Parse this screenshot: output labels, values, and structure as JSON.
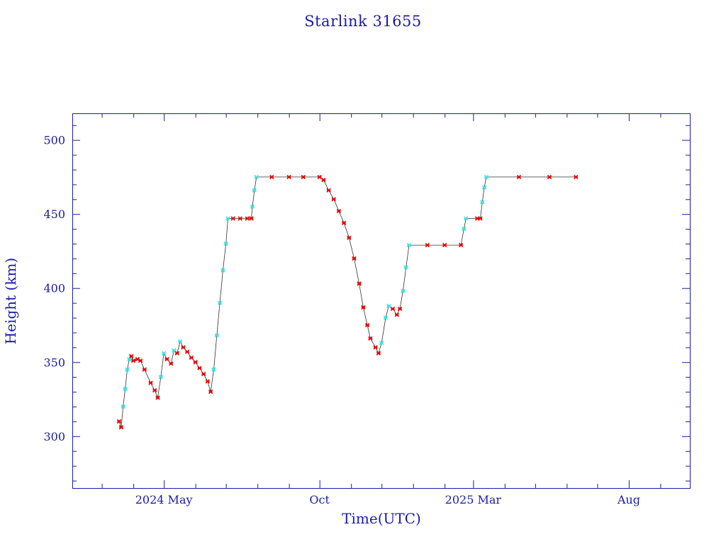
{
  "chart_data": {
    "type": "scatter",
    "title": "Starlink 31655",
    "xlabel": "Time(UTC)",
    "ylabel": "Height (km)",
    "x_unit": "date",
    "xlim": [
      "2024-02-01",
      "2025-09-30"
    ],
    "ylim": [
      265,
      518
    ],
    "y_ticks": [
      300,
      350,
      400,
      450,
      500
    ],
    "x_ticks": [
      {
        "date": "2024-05-01",
        "label": "2024 May"
      },
      {
        "date": "2024-10-01",
        "label": "Oct"
      },
      {
        "date": "2025-03-01",
        "label": "2025 Mar"
      },
      {
        "date": "2025-08-01",
        "label": "Aug"
      }
    ],
    "grid": false,
    "colors": {
      "frame": "#1a1aa6",
      "marker_red": "#e80000",
      "marker_cyan": "#3ee6e6",
      "line": "#333333"
    },
    "series": [
      {
        "points": [
          [
            "2024-03-18",
            310
          ],
          [
            "2024-03-20",
            306
          ],
          [
            "2024-03-22",
            320
          ],
          [
            "2024-03-24",
            332
          ],
          [
            "2024-03-26",
            345
          ],
          [
            "2024-03-28",
            352
          ],
          [
            "2024-03-30",
            354
          ],
          [
            "2024-04-01",
            351
          ],
          [
            "2024-04-05",
            352
          ],
          [
            "2024-04-08",
            351
          ],
          [
            "2024-04-12",
            345
          ],
          [
            "2024-04-18",
            336
          ],
          [
            "2024-04-22",
            331
          ],
          [
            "2024-04-25",
            326
          ],
          [
            "2024-04-28",
            340
          ],
          [
            "2024-05-01",
            356
          ],
          [
            "2024-05-04",
            352
          ],
          [
            "2024-05-08",
            349
          ],
          [
            "2024-05-11",
            358
          ],
          [
            "2024-05-14",
            356
          ],
          [
            "2024-05-17",
            364
          ],
          [
            "2024-05-20",
            360
          ],
          [
            "2024-05-24",
            357
          ],
          [
            "2024-05-28",
            353
          ],
          [
            "2024-06-01",
            350
          ],
          [
            "2024-06-05",
            346
          ],
          [
            "2024-06-09",
            342
          ],
          [
            "2024-06-13",
            337
          ],
          [
            "2024-06-16",
            330
          ],
          [
            "2024-06-19",
            345
          ],
          [
            "2024-06-22",
            368
          ],
          [
            "2024-06-25",
            390
          ],
          [
            "2024-06-28",
            412
          ],
          [
            "2024-07-01",
            430
          ],
          [
            "2024-07-03",
            447
          ],
          [
            "2024-07-08",
            447
          ],
          [
            "2024-07-15",
            447
          ],
          [
            "2024-07-22",
            447
          ],
          [
            "2024-07-26",
            447
          ],
          [
            "2024-07-27",
            455
          ],
          [
            "2024-07-29",
            466
          ],
          [
            "2024-07-31",
            475
          ],
          [
            "2024-08-15",
            475
          ],
          [
            "2024-09-01",
            475
          ],
          [
            "2024-09-15",
            475
          ],
          [
            "2024-10-01",
            475
          ],
          [
            "2024-10-05",
            473
          ],
          [
            "2024-10-10",
            466
          ],
          [
            "2024-10-15",
            460
          ],
          [
            "2024-10-20",
            452
          ],
          [
            "2024-10-25",
            444
          ],
          [
            "2024-10-30",
            434
          ],
          [
            "2024-11-04",
            420
          ],
          [
            "2024-11-09",
            403
          ],
          [
            "2024-11-13",
            387
          ],
          [
            "2024-11-17",
            375
          ],
          [
            "2024-11-20",
            366
          ],
          [
            "2024-11-25",
            360
          ],
          [
            "2024-11-28",
            356
          ],
          [
            "2024-12-01",
            363
          ],
          [
            "2024-12-05",
            380
          ],
          [
            "2024-12-08",
            388
          ],
          [
            "2024-12-12",
            386
          ],
          [
            "2024-12-16",
            382
          ],
          [
            "2024-12-19",
            386
          ],
          [
            "2024-12-22",
            398
          ],
          [
            "2024-12-25",
            414
          ],
          [
            "2024-12-28",
            429
          ],
          [
            "2025-01-15",
            429
          ],
          [
            "2025-02-01",
            429
          ],
          [
            "2025-02-17",
            429
          ],
          [
            "2025-02-20",
            440
          ],
          [
            "2025-02-22",
            447
          ],
          [
            "2025-03-05",
            447
          ],
          [
            "2025-03-08",
            447
          ],
          [
            "2025-03-10",
            458
          ],
          [
            "2025-03-12",
            468
          ],
          [
            "2025-03-14",
            475
          ],
          [
            "2025-04-15",
            475
          ],
          [
            "2025-05-15",
            475
          ],
          [
            "2025-06-10",
            475
          ]
        ]
      }
    ]
  }
}
